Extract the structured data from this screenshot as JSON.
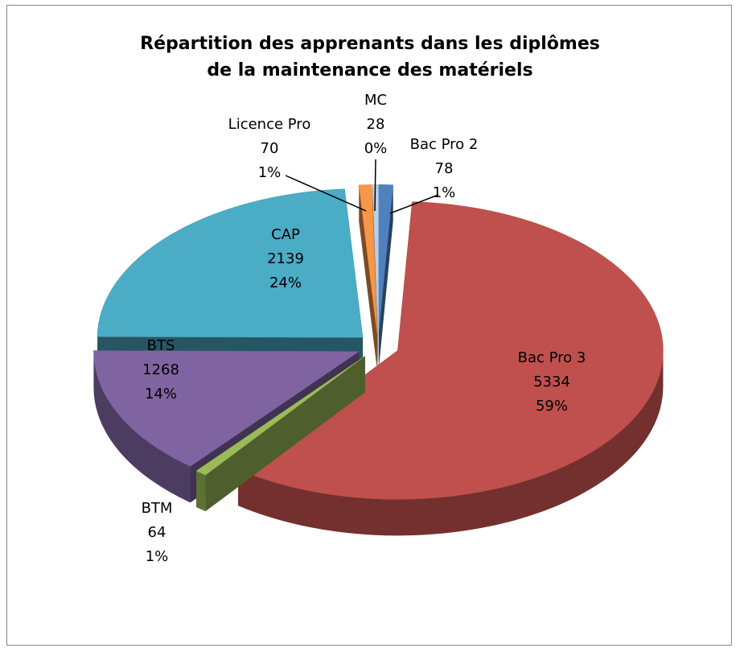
{
  "chart_data": {
    "type": "pie3d",
    "title": "Répartition des apprenants dans les diplômes de la maintenance des matériels",
    "categories": [
      "Bac Pro 2",
      "Bac Pro 3",
      "BTM",
      "BTS",
      "CAP",
      "Licence Pro",
      "MC"
    ],
    "values": [
      78,
      5334,
      64,
      1268,
      2139,
      70,
      28
    ],
    "percent_labels": [
      "1%",
      "59%",
      "1%",
      "14%",
      "24%",
      "1%",
      "0%"
    ],
    "colors": [
      "#4f81bd",
      "#c0504d",
      "#9bbb59",
      "#8064a2",
      "#4bacc6",
      "#f79646",
      "#b9d1ea"
    ]
  }
}
